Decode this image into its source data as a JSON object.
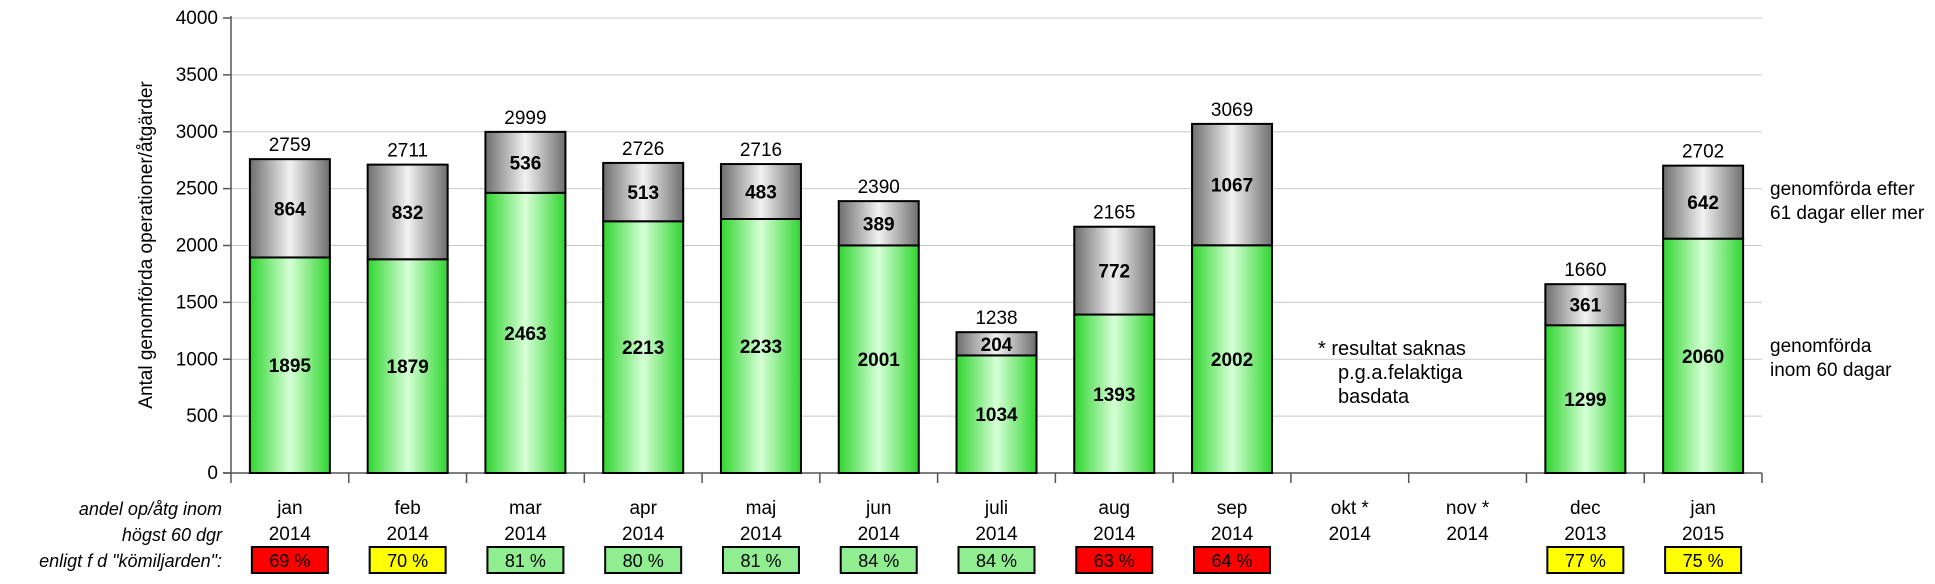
{
  "chart_data": {
    "type": "bar",
    "stacked": true,
    "ylabel": "Antal genomförda operationer/åtgärder",
    "ylim": [
      0,
      4000
    ],
    "yticks": [
      0,
      500,
      1000,
      1500,
      2000,
      2500,
      3000,
      3500,
      4000
    ],
    "grid": true,
    "categories": [
      {
        "month": "jan",
        "year": "2014"
      },
      {
        "month": "feb",
        "year": "2014"
      },
      {
        "month": "mar",
        "year": "2014"
      },
      {
        "month": "apr",
        "year": "2014"
      },
      {
        "month": "maj",
        "year": "2014"
      },
      {
        "month": "jun",
        "year": "2014"
      },
      {
        "month": "juli",
        "year": "2014"
      },
      {
        "month": "aug",
        "year": "2014"
      },
      {
        "month": "sep",
        "year": "2014"
      },
      {
        "month": "okt *",
        "year": "2014"
      },
      {
        "month": "nov *",
        "year": "2014"
      },
      {
        "month": "dec",
        "year": "2013"
      },
      {
        "month": "jan",
        "year": "2015"
      }
    ],
    "series": [
      {
        "name": "genomförda inom 60 dagar",
        "color": "#33dd33",
        "values": [
          1895,
          1879,
          2463,
          2213,
          2233,
          2001,
          1034,
          1393,
          2002,
          null,
          null,
          1299,
          2060
        ]
      },
      {
        "name": "genomförda efter 61 dagar eller mer",
        "color": "#8a8a8a",
        "values": [
          864,
          832,
          536,
          513,
          483,
          389,
          204,
          772,
          1067,
          null,
          null,
          361,
          642
        ]
      }
    ],
    "totals": [
      2759,
      2711,
      2999,
      2726,
      2716,
      2390,
      1238,
      2165,
      3069,
      null,
      null,
      1660,
      2702
    ],
    "legend_labels": [
      [
        "genomförda efter",
        "61 dagar eller mer"
      ],
      [
        "genomförda",
        "inom 60 dagar"
      ]
    ],
    "annotation": [
      "*  resultat saknas",
      "p.g.a.felaktiga",
      "basdata"
    ],
    "row_label": [
      "andel op/åtg inom",
      "högst 60 dgr",
      "enligt  f d \"kömiljarden\":"
    ],
    "shares": [
      "69 %",
      "70 %",
      "81 %",
      "80 %",
      "81 %",
      "84 %",
      "84 %",
      "63 %",
      "64 %",
      null,
      null,
      "77 %",
      "75 %"
    ],
    "share_colors": [
      "#ff0000",
      "#ffff00",
      "#90ee90",
      "#90ee90",
      "#90ee90",
      "#90ee90",
      "#90ee90",
      "#ff0000",
      "#ff0000",
      null,
      null,
      "#ffff00",
      "#ffff00"
    ]
  }
}
